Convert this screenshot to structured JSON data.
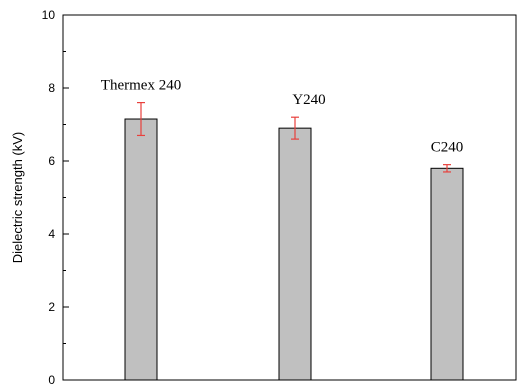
{
  "chart_data": {
    "type": "bar",
    "categories": [
      "Thermex 240",
      "Y240",
      "C240"
    ],
    "values": [
      7.15,
      6.9,
      5.8
    ],
    "errors": [
      0.45,
      0.3,
      0.1
    ],
    "bar_labels": [
      "Thermex 240",
      "Y240",
      "C240"
    ],
    "xlabel": "",
    "ylabel": "Dielectric strength (kV)",
    "ylim": [
      0,
      10
    ],
    "yticks": [
      0,
      2,
      4,
      6,
      8,
      10
    ],
    "grid": false,
    "colors": {
      "bar_fill": "#c0c0c0",
      "bar_stroke": "#000000",
      "error_bar": "#e8403c",
      "axis": "#000000"
    }
  }
}
